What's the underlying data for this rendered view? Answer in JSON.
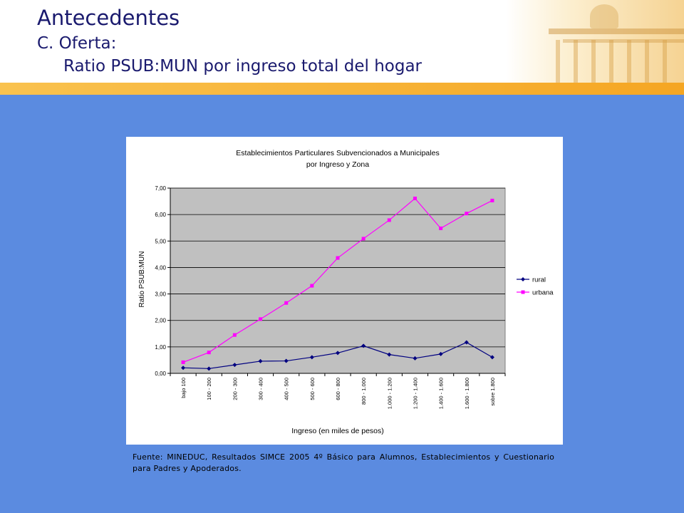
{
  "slide": {
    "title": "Antecedentes",
    "subtitle_line1": "C. Oferta:",
    "subtitle_line2": "Ratio PSUB:MUN por ingreso total del hogar",
    "source_note": "Fuente: MINEDUC, Resultados SIMCE 2005 4º Básico para Alumnos, Establecimientos y Cuestionario para Padres y Apoderados."
  },
  "colors": {
    "background": "#5b8be0",
    "title": "#1a1a6e",
    "accent_bar": "#f5a623",
    "plot_area": "#c0c0c0",
    "rural": "#000080",
    "urbana": "#ff00ff"
  },
  "chart_data": {
    "type": "line",
    "title": "Establecimientos Particulares Subvencionados a Municipales",
    "subtitle": "por Ingreso y Zona",
    "xlabel": "Ingreso (en miles de pesos)",
    "ylabel": "Ratio PSUB:MUN",
    "ylim": [
      0,
      7
    ],
    "yticks": [
      "0,00",
      "1,00",
      "2,00",
      "3,00",
      "4,00",
      "5,00",
      "6,00",
      "7,00"
    ],
    "grid": true,
    "legend_position": "right",
    "categories": [
      "bajo 100",
      "100 - 200",
      "200 - 300",
      "300 - 400",
      "400 - 500",
      "500 - 600",
      "600 - 800",
      "800 - 1.000",
      "1.000 - 1.200",
      "1.200 - 1.400",
      "1.400 - 1.600",
      "1.600 - 1.800",
      "sobre 1.800"
    ],
    "series": [
      {
        "name": "rural",
        "marker": "diamond",
        "color": "#000080",
        "values": [
          0.21,
          0.18,
          0.32,
          0.46,
          0.47,
          0.61,
          0.77,
          1.04,
          0.71,
          0.57,
          0.73,
          1.17,
          0.61
        ]
      },
      {
        "name": "urbana",
        "marker": "square",
        "color": "#ff00ff",
        "values": [
          0.42,
          0.79,
          1.45,
          2.05,
          2.66,
          3.31,
          4.36,
          5.09,
          5.79,
          6.61,
          5.48,
          6.04,
          6.53
        ]
      }
    ]
  }
}
